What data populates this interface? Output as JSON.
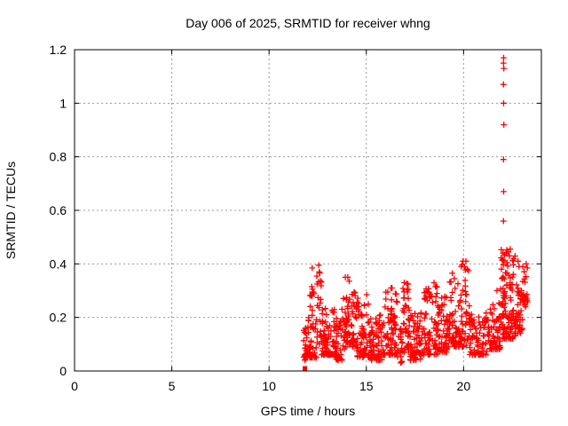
{
  "chart_data": {
    "type": "scatter",
    "title": "Day 006 of 2025, SRMTID for receiver whng",
    "xlabel": "GPS time / hours",
    "ylabel": "SRMTID / TECUs",
    "xlim": [
      0,
      24
    ],
    "ylim": [
      0,
      1.2
    ],
    "xticks": {
      "values": [
        0,
        5,
        10,
        15,
        20
      ],
      "labels": [
        "0",
        "5",
        "10",
        "15",
        "20"
      ]
    },
    "yticks": {
      "values": [
        0,
        0.2,
        0.4,
        0.6,
        0.8,
        1.0,
        1.2
      ],
      "labels": [
        "0",
        "0.2",
        "0.4",
        "0.6",
        "0.8",
        "1",
        "1.2"
      ]
    },
    "grid": true,
    "legend": "none",
    "marker": "plus",
    "marker_color": "#ff0000",
    "grid_color": "#999999",
    "axis_color": "#000000",
    "background_color": "#ffffff",
    "data_time_range_hours": [
      11.78,
      23.3
    ],
    "series": [
      {
        "name": "SRMTID",
        "zero_point": [
          11.84,
          0.01
        ],
        "outlier_points": [
          [
            12.22,
            0.385
          ],
          [
            12.55,
            0.395
          ],
          [
            12.58,
            0.37
          ],
          [
            13.92,
            0.35
          ],
          [
            14.05,
            0.35
          ],
          [
            14.12,
            0.335
          ],
          [
            15.02,
            0.285
          ],
          [
            16.32,
            0.31
          ],
          [
            16.95,
            0.33
          ],
          [
            18.48,
            0.33
          ],
          [
            18.55,
            0.315
          ],
          [
            19.42,
            0.365
          ],
          [
            19.52,
            0.345
          ],
          [
            19.97,
            0.41
          ],
          [
            20.05,
            0.39
          ],
          [
            20.12,
            0.41
          ],
          [
            21.72,
            0.3
          ],
          [
            22.05,
            0.56
          ],
          [
            22.06,
            0.67
          ],
          [
            22.05,
            0.79
          ],
          [
            22.07,
            0.92
          ],
          [
            22.06,
            1.0
          ],
          [
            22.05,
            1.07
          ],
          [
            22.07,
            1.13
          ],
          [
            22.05,
            1.15
          ],
          [
            22.06,
            1.17
          ],
          [
            22.3,
            0.445
          ],
          [
            22.35,
            0.43
          ],
          [
            22.4,
            0.455
          ],
          [
            22.8,
            0.41
          ],
          [
            22.85,
            0.39
          ],
          [
            23.22,
            0.4
          ],
          [
            23.28,
            0.385
          ]
        ],
        "dense_bands": [
          [
            11.78,
            12.0,
            0.04,
            0.17,
            25
          ],
          [
            12.0,
            12.45,
            0.05,
            0.32,
            50
          ],
          [
            12.45,
            12.7,
            0.1,
            0.4,
            22
          ],
          [
            12.7,
            13.4,
            0.06,
            0.26,
            75
          ],
          [
            13.4,
            13.75,
            0.04,
            0.2,
            38
          ],
          [
            13.75,
            14.1,
            0.08,
            0.29,
            38
          ],
          [
            14.1,
            14.5,
            0.09,
            0.31,
            42
          ],
          [
            14.5,
            15.2,
            0.05,
            0.28,
            70
          ],
          [
            15.2,
            15.85,
            0.04,
            0.21,
            62
          ],
          [
            15.85,
            16.6,
            0.06,
            0.31,
            72
          ],
          [
            16.6,
            16.85,
            0.03,
            0.16,
            22
          ],
          [
            16.85,
            17.25,
            0.07,
            0.33,
            42
          ],
          [
            17.25,
            17.95,
            0.04,
            0.22,
            65
          ],
          [
            17.95,
            18.7,
            0.06,
            0.32,
            72
          ],
          [
            18.7,
            19.25,
            0.07,
            0.28,
            52
          ],
          [
            19.25,
            19.75,
            0.09,
            0.36,
            48
          ],
          [
            19.75,
            20.3,
            0.09,
            0.4,
            52
          ],
          [
            20.3,
            21.3,
            0.06,
            0.22,
            88
          ],
          [
            21.3,
            21.9,
            0.08,
            0.26,
            58
          ],
          [
            21.9,
            22.25,
            0.12,
            0.46,
            58
          ],
          [
            22.25,
            22.65,
            0.12,
            0.43,
            48
          ],
          [
            22.65,
            23.05,
            0.14,
            0.33,
            42
          ],
          [
            23.0,
            23.3,
            0.24,
            0.41,
            20
          ]
        ]
      }
    ]
  }
}
